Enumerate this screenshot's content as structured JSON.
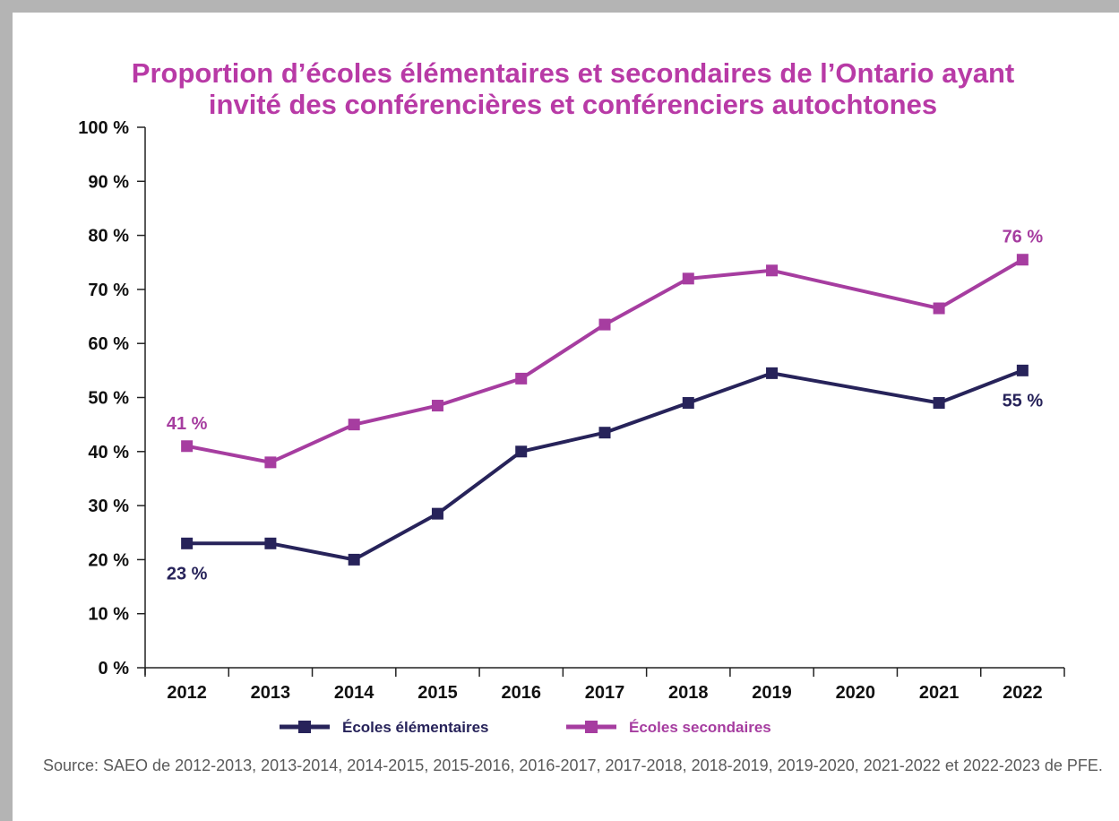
{
  "chart_data": {
    "type": "line",
    "title": "Proportion d’écoles élémentaires et secondaires de l’Ontario ayant invité des conférencières et conférenciers autochtones",
    "title_lines": [
      "Proportion d’écoles élémentaires et secondaires de l’Ontario ayant",
      "invité des conférencières et conférenciers autochtones"
    ],
    "xlabel": "",
    "ylabel": "",
    "categories": [
      "2012",
      "2013",
      "2014",
      "2015",
      "2016",
      "2017",
      "2018",
      "2019",
      "2020",
      "2021",
      "2022"
    ],
    "y_ticks": [
      "0 %",
      "10 %",
      "20 %",
      "30 %",
      "40 %",
      "50 %",
      "60 %",
      "70 %",
      "80 %",
      "90 %",
      "100 %"
    ],
    "ylim": [
      0,
      100
    ],
    "grid": false,
    "legend_position": "bottom",
    "series": [
      {
        "name": "Écoles élémentaires",
        "color": "#27235a",
        "values": [
          23,
          23,
          20,
          28.5,
          40,
          43.5,
          49,
          54.5,
          null,
          49,
          55
        ],
        "labels": [
          {
            "index": 0,
            "text": "23 %",
            "position": "below"
          },
          {
            "index": 10,
            "text": "55 %",
            "position": "below"
          }
        ]
      },
      {
        "name": "Écoles secondaires",
        "color": "#a63da0",
        "values": [
          41,
          38,
          45,
          48.5,
          53.5,
          63.5,
          72,
          73.5,
          null,
          66.5,
          75.5
        ],
        "labels": [
          {
            "index": 0,
            "text": "41 %",
            "position": "above"
          },
          {
            "index": 10,
            "text": "76 %",
            "position": "above"
          }
        ]
      }
    ]
  },
  "source": "Source: SAEO de 2012-2013, 2013-2014, 2014-2015, 2015-2016, 2016-2017, 2017-2018, 2018-2019, 2019-2020, 2021-2022 et 2022-2023 de PFE."
}
